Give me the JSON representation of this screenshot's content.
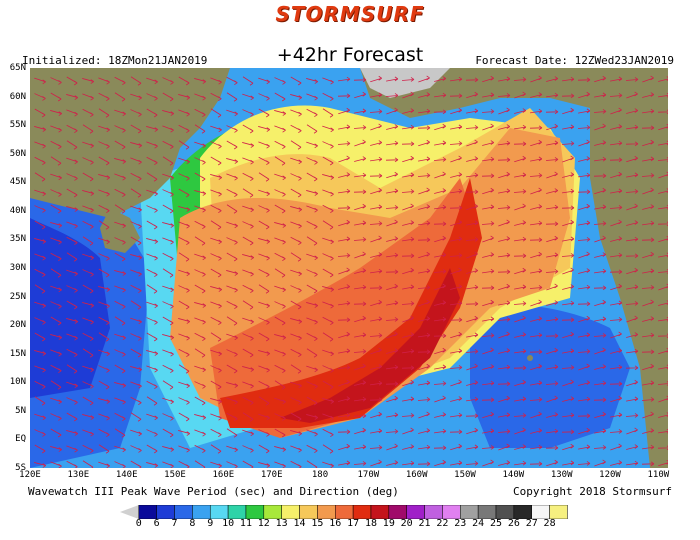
{
  "header": {
    "brand": "STORMSURF",
    "title": "+42hr Forecast",
    "initialized": "Initialized: 18ZMon21JAN2019",
    "forecast_date": "Forecast Date: 12ZWed23JAN2019"
  },
  "axes": {
    "lat_labels": [
      "65N",
      "60N",
      "55N",
      "50N",
      "45N",
      "40N",
      "35N",
      "30N",
      "25N",
      "20N",
      "15N",
      "10N",
      "5N",
      "EQ",
      "5S"
    ],
    "lon_labels": [
      "120E",
      "130E",
      "140E",
      "150E",
      "160E",
      "170E",
      "180",
      "170W",
      "160W",
      "150W",
      "140W",
      "130W",
      "120W",
      "110W"
    ]
  },
  "footer": {
    "caption": "Wavewatch III Peak Wave Period (sec) and Direction (deg)",
    "copyright": "Copyright 2018 Stormsurf"
  },
  "colorbar": {
    "ticks": [
      "0",
      "6",
      "7",
      "8",
      "9",
      "10",
      "11",
      "12",
      "13",
      "14",
      "15",
      "16",
      "17",
      "18",
      "19",
      "20",
      "21",
      "22",
      "23",
      "24",
      "25",
      "26",
      "27",
      "28"
    ],
    "colors": [
      "#0a0a9a",
      "#1e3cd6",
      "#2a68e8",
      "#3aa2f0",
      "#58d8f2",
      "#2ed3a8",
      "#2ec840",
      "#a8e83a",
      "#f6f06a",
      "#f6c85a",
      "#f29a4e",
      "#ee6a3a",
      "#e02c10",
      "#c4141c",
      "#a00a6a",
      "#a020c8",
      "#c060e0",
      "#e080f0",
      "#a0a0a0",
      "#787878",
      "#505050",
      "#282828",
      "#f6f6f6",
      "#f6f080"
    ]
  },
  "legend_colors": {
    "land": "#8a8a5a",
    "ice": "#c8c8c8",
    "arrow": "#d0204a"
  }
}
